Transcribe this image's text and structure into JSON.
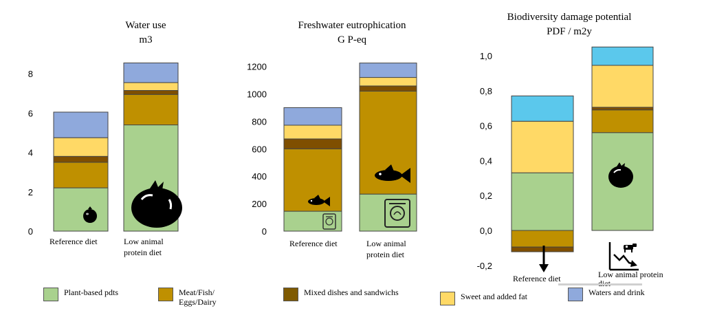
{
  "colors": {
    "plant": "#a9d18e",
    "meat": "#bf9000",
    "mixed": "#7f4f00",
    "sweet": "#ffd966",
    "waters_blue": "#8fa9dc",
    "waters_cyan": "#5bc8ec"
  },
  "legend": [
    {
      "key": "plant",
      "label": "Plant-based pdts"
    },
    {
      "key": "meat",
      "label": "Meat/Fish/ Eggs/Dairy"
    },
    {
      "key": "mixed",
      "label": "Mixed dishes and sandwichs"
    },
    {
      "key": "sweet",
      "label": "Sweet and added fat"
    },
    {
      "key": "waters_blue",
      "label": "Waters and drink"
    }
  ],
  "chart_data": [
    {
      "type": "bar",
      "stacked": true,
      "title": "Water use",
      "subtitle": "m3",
      "categories": [
        "Reference diet",
        "Low animal protein diet"
      ],
      "ylim": [
        0,
        9
      ],
      "yticks": [
        "0",
        "2",
        "4",
        "6",
        "8"
      ],
      "ytick_values": [
        0,
        2,
        4,
        6,
        8
      ],
      "icons": [
        "tomato-icon",
        "tomato-icon"
      ],
      "series": [
        {
          "name": "Plant-based pdts",
          "color_key": "plant",
          "values": [
            2.2,
            5.4
          ]
        },
        {
          "name": "Meat/Fish/ Eggs/Dairy",
          "color_key": "meat",
          "values": [
            1.3,
            1.55
          ]
        },
        {
          "name": "Mixed dishes and sandwichs",
          "color_key": "mixed",
          "values": [
            0.3,
            0.2
          ]
        },
        {
          "name": "Sweet and added fat",
          "color_key": "sweet",
          "values": [
            0.95,
            0.4
          ]
        },
        {
          "name": "Waters and drink",
          "color_key": "waters_blue",
          "values": [
            1.3,
            1.0
          ]
        }
      ]
    },
    {
      "type": "bar",
      "stacked": true,
      "title": "Freshwater eutrophication",
      "subtitle": "G P-eq",
      "categories": [
        "Reference diet",
        "Low animal protein diet"
      ],
      "ylim": [
        0,
        1300
      ],
      "yticks": [
        "0",
        "200",
        "400",
        "600",
        "800",
        "1000",
        "1200"
      ],
      "ytick_values": [
        0,
        200,
        400,
        600,
        800,
        1000,
        1200
      ],
      "icons": [
        "fish-icon",
        "fish-icon"
      ],
      "series": [
        {
          "name": "Plant-based pdts",
          "color_key": "plant",
          "values": [
            145,
            270
          ]
        },
        {
          "name": "Meat/Fish/ Eggs/Dairy",
          "color_key": "meat",
          "values": [
            455,
            750
          ]
        },
        {
          "name": "Mixed dishes and sandwichs",
          "color_key": "mixed",
          "values": [
            72,
            38
          ]
        },
        {
          "name": "Sweet and added fat",
          "color_key": "sweet",
          "values": [
            100,
            62
          ]
        },
        {
          "name": "Waters and drink",
          "color_key": "waters_blue",
          "values": [
            128,
            105
          ]
        }
      ]
    },
    {
      "type": "bar",
      "stacked": true,
      "title": "Biodiversity damage potential",
      "subtitle": "PDF / m2y",
      "categories": [
        "Reference diet",
        "Low animal protein diet"
      ],
      "ylim": [
        -0.2,
        1.05
      ],
      "yticks": [
        "-0,2",
        "0,0",
        "0,2",
        "0,4",
        "0,6",
        "0,8",
        "1,0"
      ],
      "ytick_values": [
        -0.2,
        0,
        0.2,
        0.4,
        0.6,
        0.8,
        1.0
      ],
      "icons": [
        "tomato-icon"
      ],
      "series": [
        {
          "name": "Plant-based pdts",
          "color_key": "plant",
          "values": [
            0.33,
            0.56
          ]
        },
        {
          "name": "Meat/Fish/ Eggs/Dairy",
          "color_key": "meat",
          "values": [
            -0.095,
            0.13
          ]
        },
        {
          "name": "Mixed dishes and sandwichs",
          "color_key": "mixed",
          "values": [
            -0.027,
            0.015
          ]
        },
        {
          "name": "Sweet and added fat",
          "color_key": "sweet",
          "values": [
            0.295,
            0.24
          ]
        },
        {
          "name": "Waters and drink",
          "color_key": "waters_cyan",
          "values": [
            0.145,
            0.105
          ]
        }
      ]
    }
  ]
}
